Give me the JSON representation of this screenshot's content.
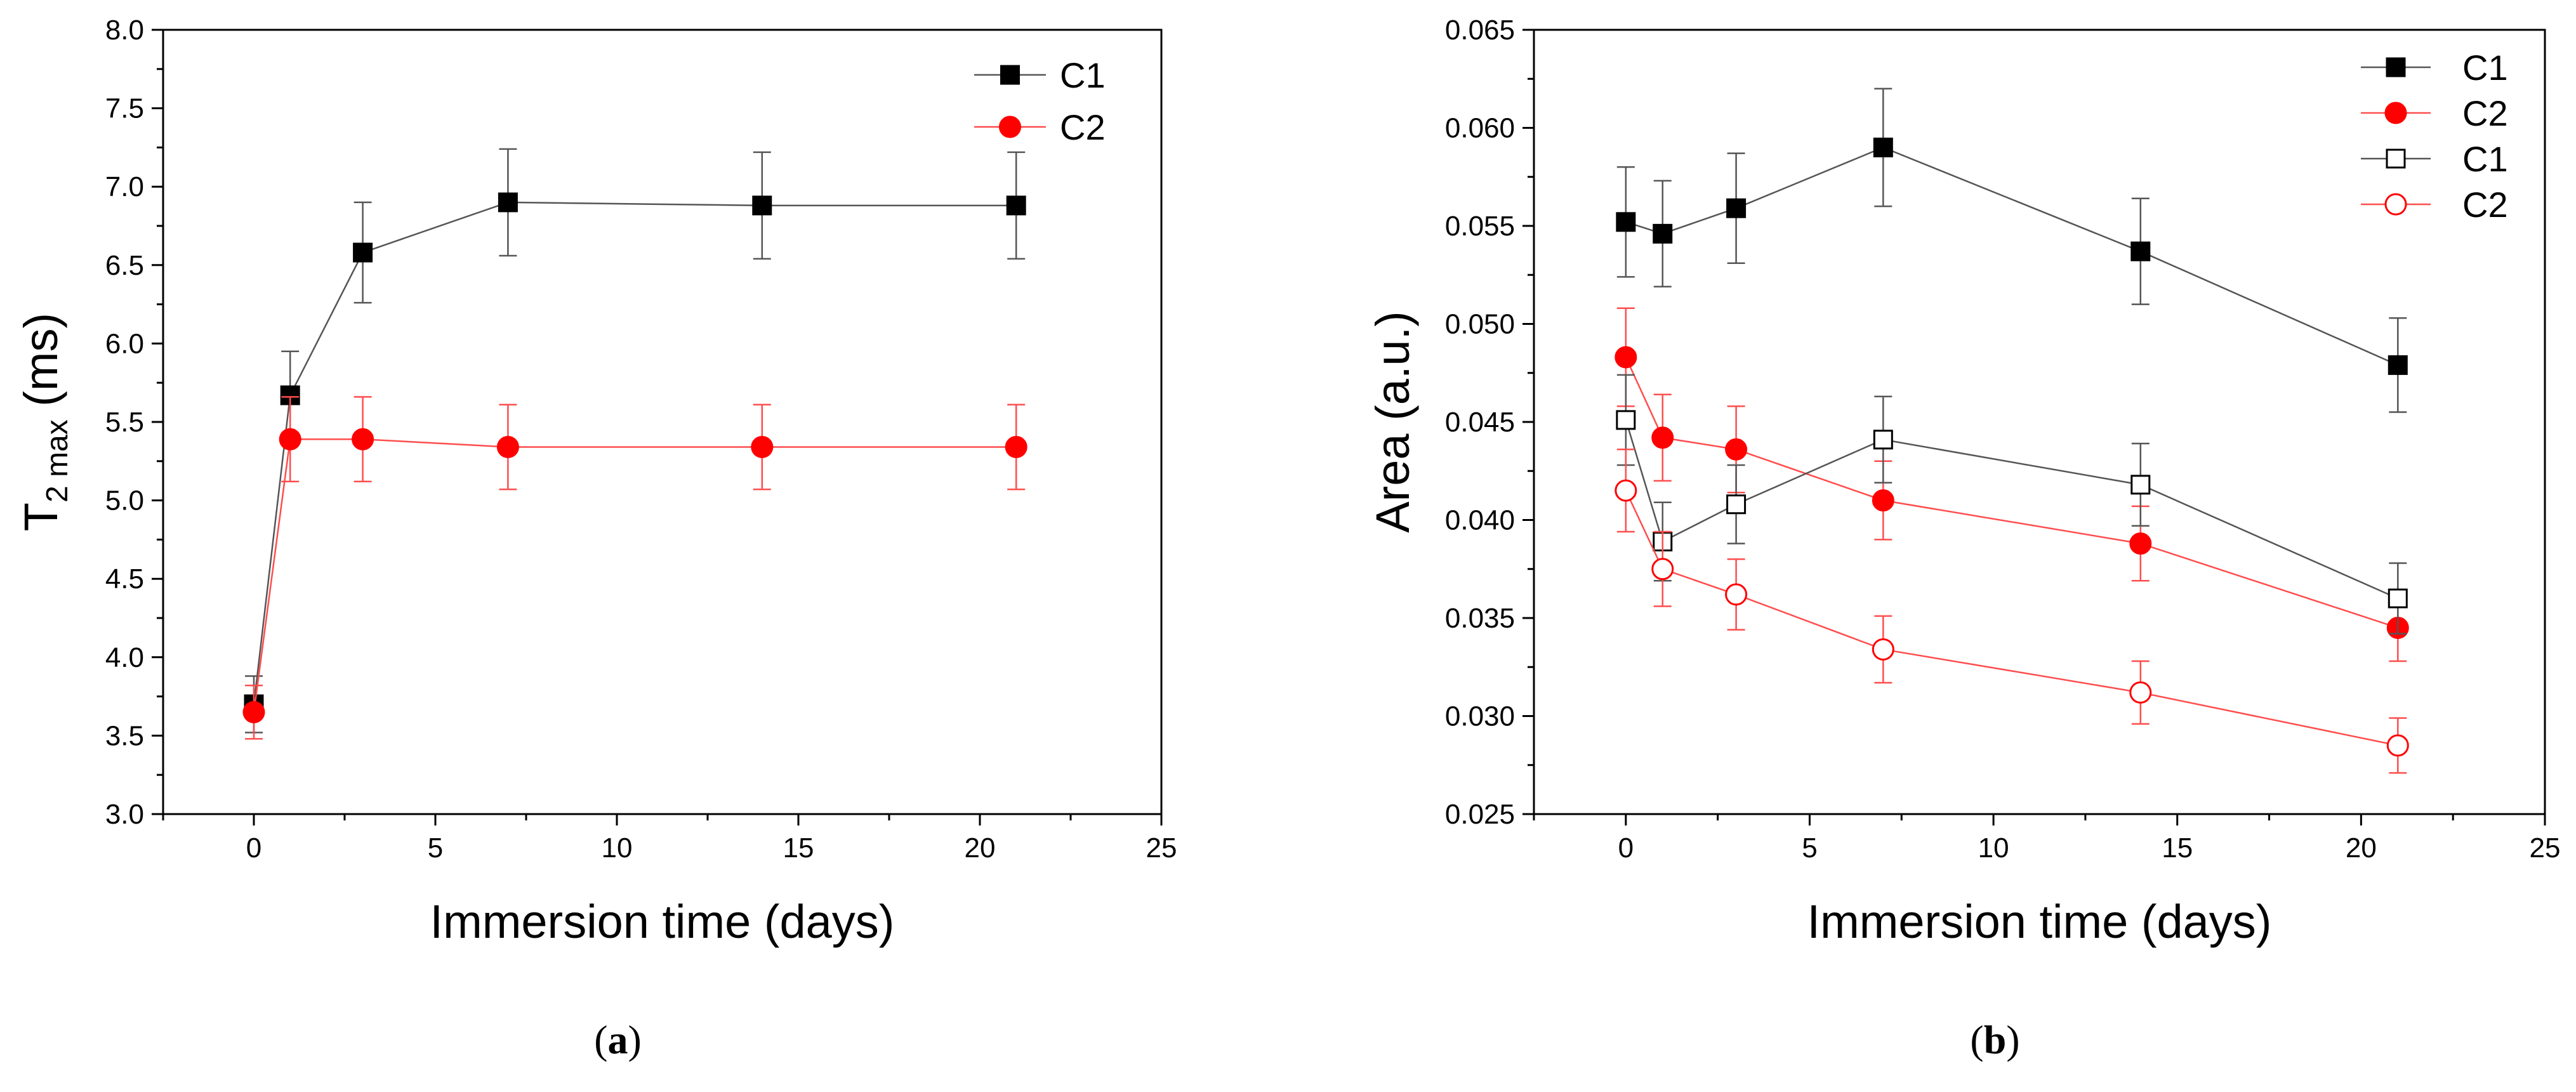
{
  "colors": {
    "black": "#000000",
    "red": "#ff0000",
    "red_line": "#ff4d4d",
    "grey_line": "#555555"
  },
  "chart_data": [
    {
      "id": "a",
      "type": "line",
      "caption": {
        "open": "(",
        "letter": "a",
        "close": ")"
      },
      "xlabel": "Immersion time (days)",
      "ylabel": {
        "main": "T",
        "sub": "2 max",
        "unit": " (ms)"
      },
      "xlim": [
        -2.5,
        25
      ],
      "ylim": [
        3.0,
        8.0
      ],
      "xticks": [
        0,
        5,
        10,
        15,
        20,
        25
      ],
      "xtick_labels": [
        "0",
        "5",
        "10",
        "15",
        "20",
        "25"
      ],
      "yticks": [
        3.0,
        3.5,
        4.0,
        4.5,
        5.0,
        5.5,
        6.0,
        6.5,
        7.0,
        7.5,
        8.0
      ],
      "ytick_labels": [
        "3.0",
        "3.5",
        "4.0",
        "4.5",
        "5.0",
        "5.5",
        "6.0",
        "6.5",
        "7.0",
        "7.5",
        "8.0"
      ],
      "grid": false,
      "legend": "top-right",
      "series": [
        {
          "name": "C1",
          "color": "#000000",
          "marker": "square",
          "filled": true,
          "x": [
            0,
            1,
            3,
            7,
            14,
            21
          ],
          "y": [
            3.7,
            5.67,
            6.58,
            6.9,
            6.88,
            6.88
          ],
          "err": [
            0.18,
            0.28,
            0.32,
            0.34,
            0.34,
            0.34
          ]
        },
        {
          "name": "C2",
          "color": "#ff0000",
          "marker": "circle",
          "filled": true,
          "x": [
            0,
            1,
            3,
            7,
            14,
            21
          ],
          "y": [
            3.65,
            5.39,
            5.39,
            5.34,
            5.34,
            5.34
          ],
          "err": [
            0.17,
            0.27,
            0.27,
            0.27,
            0.27,
            0.27
          ]
        }
      ]
    },
    {
      "id": "b",
      "type": "line",
      "caption": {
        "open": "(",
        "letter": "b",
        "close": ")"
      },
      "xlabel": "Immersion time (days)",
      "ylabel": {
        "main": "Area (a.u.)",
        "sub": "",
        "unit": ""
      },
      "xlim": [
        -2.5,
        25
      ],
      "ylim": [
        0.025,
        0.065
      ],
      "xticks": [
        0,
        5,
        10,
        15,
        20,
        25
      ],
      "xtick_labels": [
        "0",
        "5",
        "10",
        "15",
        "20",
        "25"
      ],
      "yticks": [
        0.025,
        0.03,
        0.035,
        0.04,
        0.045,
        0.05,
        0.055,
        0.06,
        0.065
      ],
      "ytick_labels": [
        "0.025",
        "0.030",
        "0.035",
        "0.040",
        "0.045",
        "0.050",
        "0.055",
        "0.060",
        "0.065"
      ],
      "grid": false,
      "legend": "top-right",
      "series": [
        {
          "name": "C1",
          "color": "#000000",
          "marker": "square",
          "filled": true,
          "x": [
            0,
            1,
            3,
            7,
            14,
            21
          ],
          "y": [
            0.0552,
            0.0546,
            0.0559,
            0.059,
            0.0537,
            0.0479
          ],
          "err": [
            0.0028,
            0.0027,
            0.0028,
            0.003,
            0.0027,
            0.0024
          ]
        },
        {
          "name": "C2",
          "color": "#ff0000",
          "marker": "circle",
          "filled": true,
          "x": [
            0,
            1,
            3,
            7,
            14,
            21
          ],
          "y": [
            0.0483,
            0.0442,
            0.0436,
            0.041,
            0.0388,
            0.0345
          ],
          "err": [
            0.0025,
            0.0022,
            0.0022,
            0.002,
            0.0019,
            0.0017
          ]
        },
        {
          "name": "C1",
          "color": "#000000",
          "marker": "square",
          "filled": false,
          "x": [
            0,
            1,
            3,
            7,
            14,
            21
          ],
          "y": [
            0.0451,
            0.0389,
            0.0408,
            0.0441,
            0.0418,
            0.036
          ],
          "err": [
            0.0023,
            0.002,
            0.002,
            0.0022,
            0.0021,
            0.0018
          ]
        },
        {
          "name": "C2",
          "color": "#ff0000",
          "marker": "circle",
          "filled": false,
          "x": [
            0,
            1,
            3,
            7,
            14,
            21
          ],
          "y": [
            0.0415,
            0.0375,
            0.0362,
            0.0334,
            0.0312,
            0.0285
          ],
          "err": [
            0.0021,
            0.0019,
            0.0018,
            0.0017,
            0.0016,
            0.0014
          ]
        }
      ]
    }
  ]
}
